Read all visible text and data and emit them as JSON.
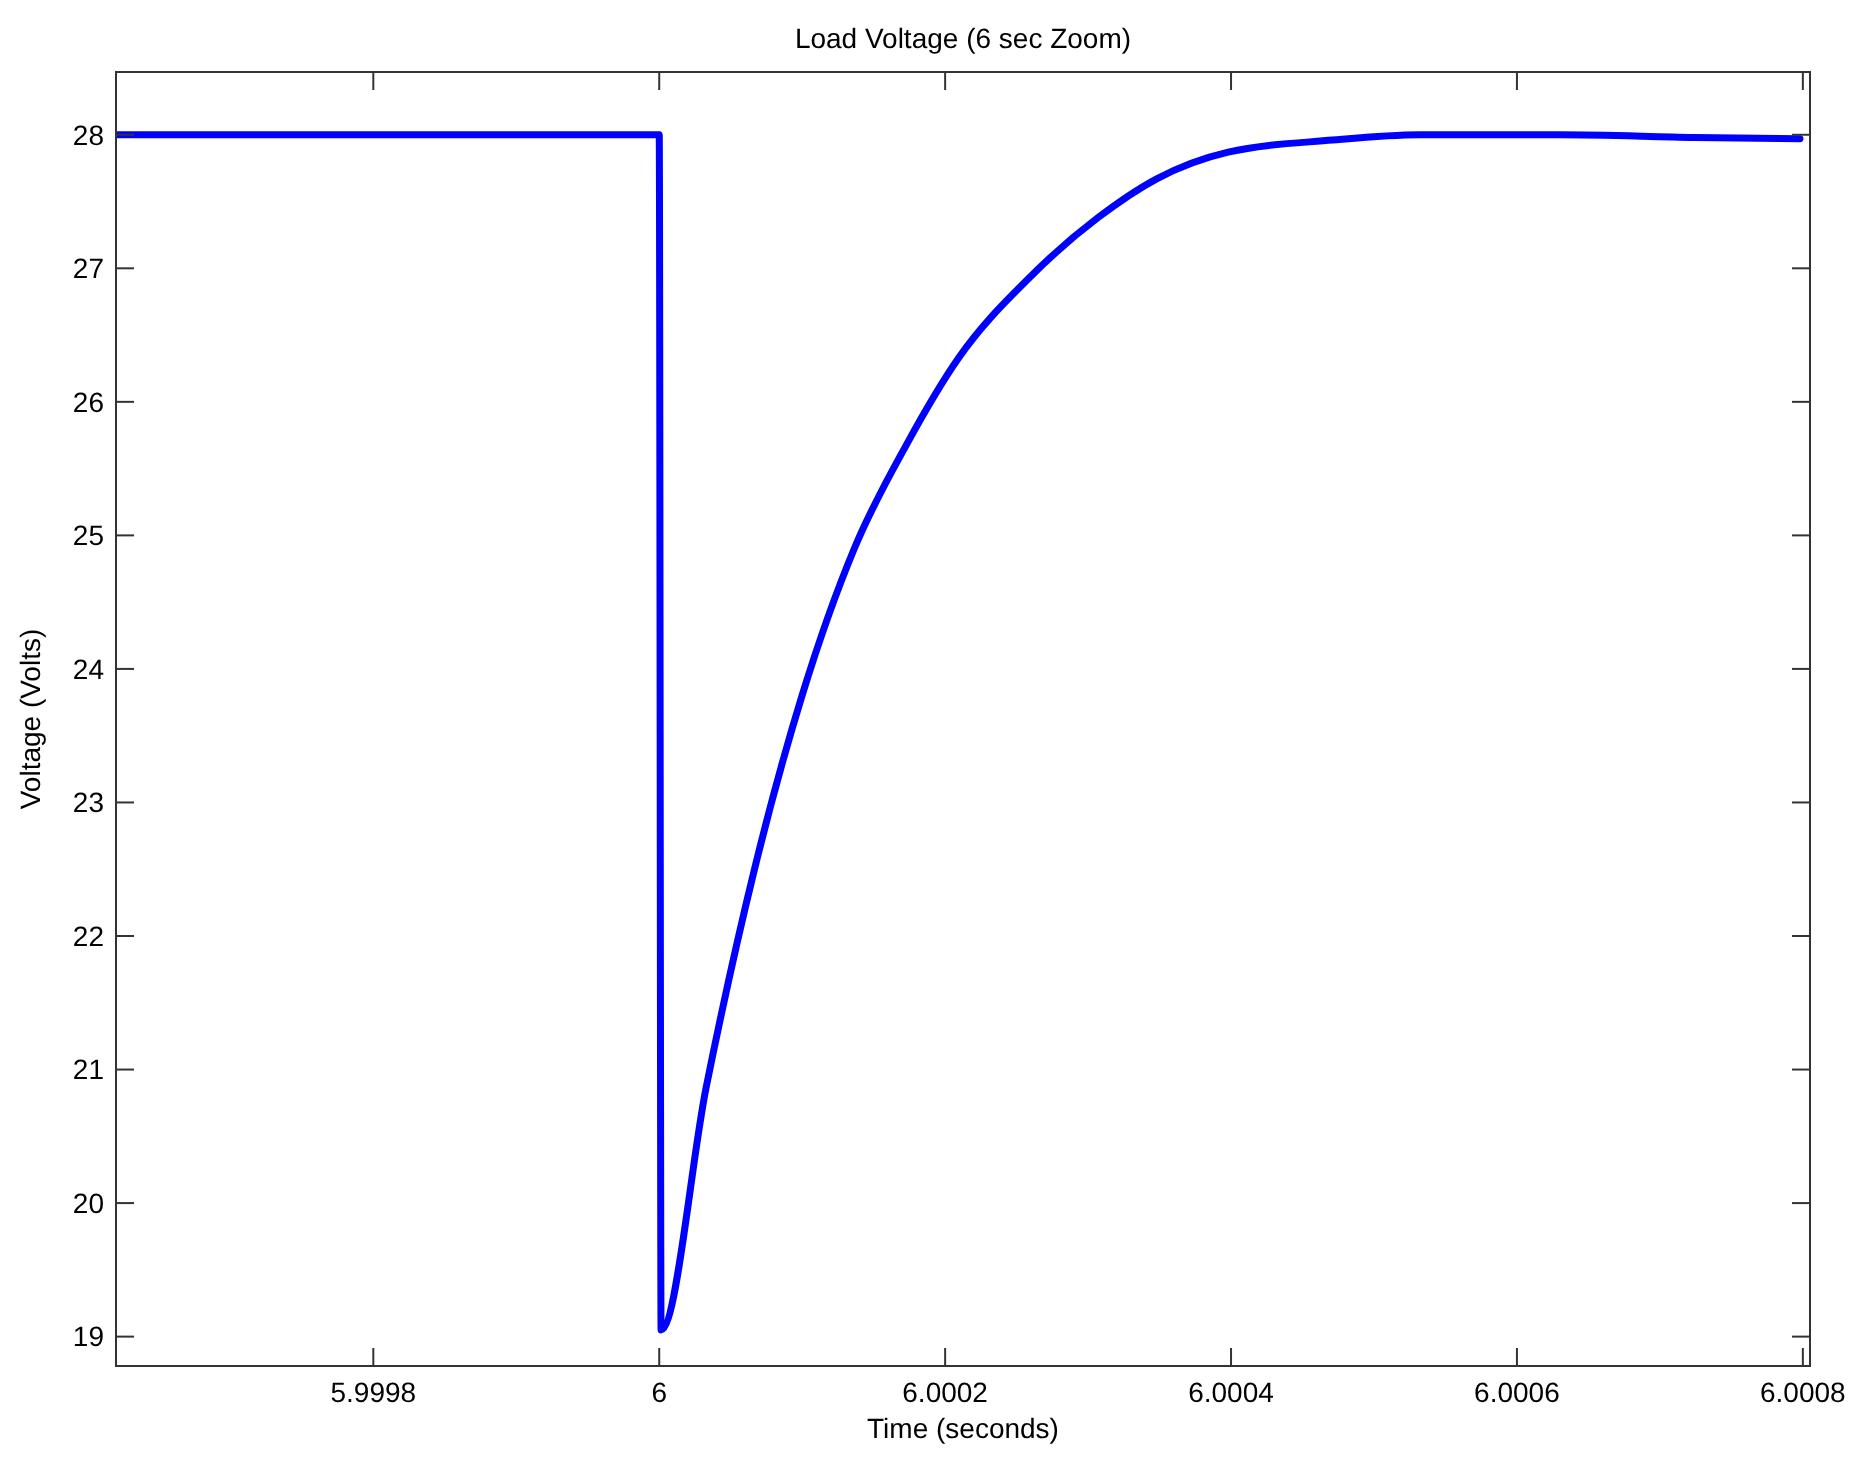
{
  "chart_data": {
    "type": "line",
    "title": "Load Voltage (6 sec Zoom)",
    "xlabel": "Time (seconds)",
    "ylabel": "Voltage (Volts)",
    "xlim": [
      5.99962,
      6.000805
    ],
    "ylim": [
      18.78,
      28.47
    ],
    "xticks": [
      5.9998,
      6,
      6.0002,
      6.0004,
      6.0006,
      6.0008
    ],
    "yticks": [
      19,
      20,
      21,
      22,
      23,
      24,
      25,
      26,
      27,
      28
    ],
    "grid": false,
    "series": [
      {
        "color": "#0000ff",
        "x": [
          5.99962,
          6,
          6.0000013,
          6.0000329,
          6.0000664,
          6.0000999,
          6.0001364,
          6.000173,
          6.0002095,
          6.000258,
          6.000307,
          6.000348,
          6.000398,
          6.000471,
          6.000532,
          6.00063,
          6.000724,
          6.000798
        ],
        "values": [
          28,
          28,
          19.05,
          20.87,
          22.49,
          23.8,
          24.9,
          25.68,
          26.33,
          26.92,
          27.38,
          27.67,
          27.87,
          27.96,
          28,
          28,
          27.98,
          27.97
        ]
      }
    ]
  }
}
